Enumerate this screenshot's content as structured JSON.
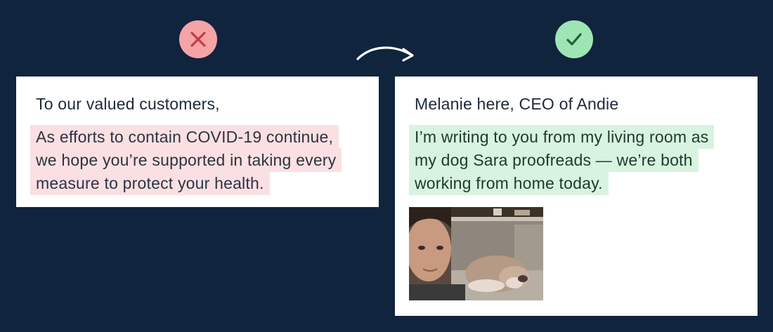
{
  "badges": {
    "bad": {
      "icon": "x-icon",
      "color": "#f6a3a6",
      "stroke": "#c53d3f"
    },
    "good": {
      "icon": "check-icon",
      "color": "#9ee5b4",
      "stroke": "#1f5e3a"
    }
  },
  "left_card": {
    "greeting": "To our valued customers,",
    "lines": [
      "As efforts to contain COVID-19 continue,",
      "we hope you’re supported in taking every",
      "measure to protect your health."
    ],
    "highlight_color": "#fbe0e3"
  },
  "right_card": {
    "greeting": "Melanie here, CEO of Andie",
    "lines": [
      "I’m writing to you from my living room as",
      "my dog Sara proofreads — we’re both",
      "working from home today."
    ],
    "highlight_color": "#d8f3e0",
    "photo": "selfie-with-dog-photo"
  },
  "colors": {
    "background": "#10243e",
    "card": "#ffffff"
  }
}
